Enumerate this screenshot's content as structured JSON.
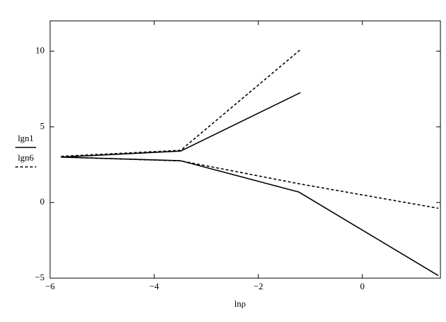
{
  "chart_data": {
    "type": "line",
    "x_label": "lnρ",
    "xlim": [
      -6,
      1.5
    ],
    "xticks": [
      {
        "value": -6,
        "label": "−6"
      },
      {
        "value": -4,
        "label": "−4"
      },
      {
        "value": -2,
        "label": "−2"
      },
      0
    ],
    "ylim": [
      -5,
      12
    ],
    "yticks": [
      {
        "value": -5,
        "label": "−5"
      },
      0,
      5,
      10
    ],
    "series": [
      {
        "name": "lgn1",
        "color": "#000000",
        "dash": "solid",
        "x": [
          -5.79,
          -3.49,
          -1.19,
          null,
          -5.79,
          -3.49,
          -1.22,
          1.46
        ],
        "values": [
          3.0,
          3.4,
          7.26,
          null,
          3.0,
          2.76,
          0.69,
          -4.83
        ]
      },
      {
        "name": "lgn6",
        "color": "#000000",
        "dash": "dotted",
        "x": [
          -5.79,
          -3.49,
          -1.19,
          null,
          -5.79,
          -3.49,
          -1.22,
          1.46
        ],
        "values": [
          3.05,
          3.45,
          10.1,
          null,
          3.0,
          2.75,
          1.24,
          -0.38
        ]
      }
    ]
  }
}
